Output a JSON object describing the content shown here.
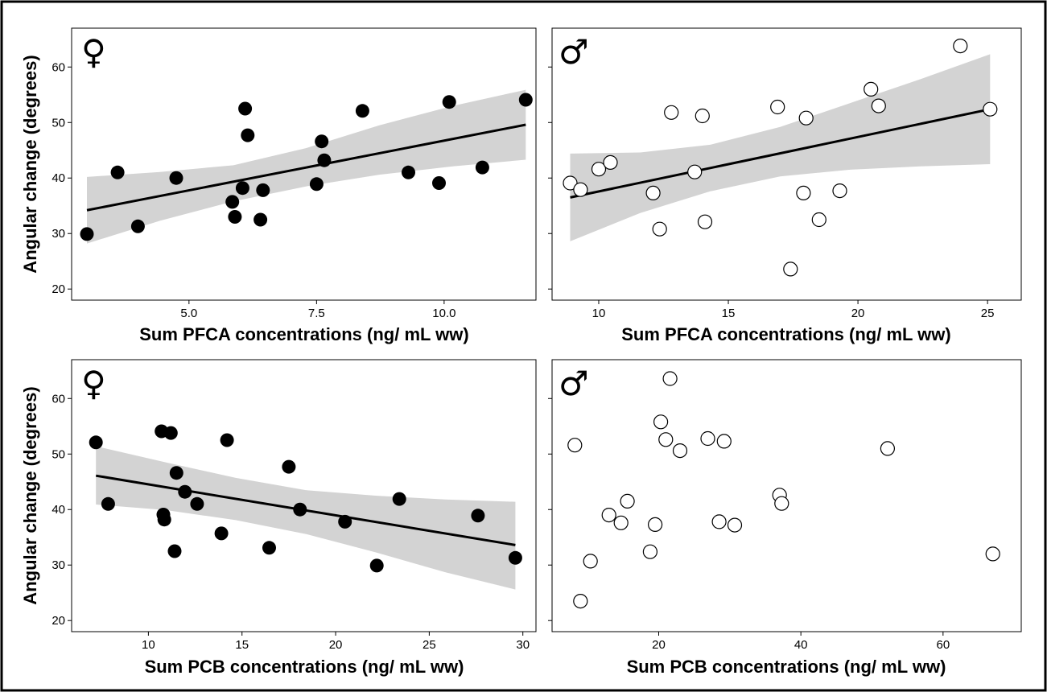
{
  "colors": {
    "female_point": "#000000",
    "male_point_fill": "#ffffff",
    "band": "#d3d3d3",
    "line": "#000000"
  },
  "chart_data": [
    {
      "type": "scatter",
      "symbol": "♀",
      "xlabel": "Sum PFCA concentrations (ng/ mL ww)",
      "ylabel": "Angular change (degrees)",
      "xlim": [
        2.7,
        11.8
      ],
      "ylim": [
        18,
        67
      ],
      "xticks": [
        5.0,
        7.5,
        10.0
      ],
      "xtick_labels": [
        "5.0",
        "7.5",
        "10.0"
      ],
      "yticks": [
        20,
        30,
        40,
        50,
        60
      ],
      "ytick_labels": [
        "20",
        "30",
        "40",
        "50",
        "60"
      ],
      "marker": "filled",
      "points": [
        [
          3.0,
          29.9
        ],
        [
          3.6,
          41.0
        ],
        [
          4.0,
          31.3
        ],
        [
          4.75,
          40.0
        ],
        [
          5.85,
          35.7
        ],
        [
          5.9,
          33.0
        ],
        [
          6.05,
          38.2
        ],
        [
          6.1,
          52.5
        ],
        [
          6.15,
          47.7
        ],
        [
          6.4,
          32.5
        ],
        [
          6.45,
          37.8
        ],
        [
          7.5,
          38.9
        ],
        [
          7.6,
          46.6
        ],
        [
          7.65,
          43.2
        ],
        [
          8.4,
          52.1
        ],
        [
          9.3,
          41.0
        ],
        [
          9.9,
          39.1
        ],
        [
          10.1,
          53.7
        ],
        [
          10.75,
          41.9
        ],
        [
          11.6,
          54.1
        ]
      ],
      "fit": {
        "x": [
          3.0,
          11.6
        ],
        "y": [
          34.2,
          49.6
        ]
      },
      "band": {
        "x": [
          3.0,
          4.43,
          5.87,
          7.3,
          8.73,
          10.17,
          11.6
        ],
        "lower": [
          28.2,
          32.3,
          35.8,
          38.5,
          40.6,
          42.1,
          43.3
        ],
        "upper": [
          40.2,
          41.1,
          42.3,
          45.4,
          49.5,
          53.0,
          55.9
        ]
      }
    },
    {
      "type": "scatter",
      "symbol": "♂",
      "xlabel": "Sum PFCA concentrations (ng/ mL ww)",
      "ylabel": "",
      "xlim": [
        8.2,
        26.3
      ],
      "ylim": [
        18,
        67
      ],
      "xticks": [
        10,
        15,
        20,
        25
      ],
      "xtick_labels": [
        "10",
        "15",
        "20",
        "25"
      ],
      "yticks": [
        20,
        30,
        40,
        50,
        60
      ],
      "ytick_labels": [
        "",
        "",
        "",
        "",
        ""
      ],
      "marker": "open",
      "points": [
        [
          8.9,
          39.1
        ],
        [
          9.3,
          37.9
        ],
        [
          10.0,
          41.6
        ],
        [
          10.45,
          42.8
        ],
        [
          12.1,
          37.3
        ],
        [
          12.35,
          30.8
        ],
        [
          12.8,
          51.8
        ],
        [
          13.7,
          41.1
        ],
        [
          14.0,
          51.2
        ],
        [
          14.1,
          32.1
        ],
        [
          16.9,
          52.8
        ],
        [
          17.4,
          23.6
        ],
        [
          17.9,
          37.3
        ],
        [
          18.0,
          50.8
        ],
        [
          18.5,
          32.5
        ],
        [
          19.3,
          37.7
        ],
        [
          20.5,
          56.0
        ],
        [
          20.8,
          53.0
        ],
        [
          23.95,
          63.8
        ],
        [
          25.1,
          52.4
        ]
      ],
      "fit": {
        "x": [
          8.9,
          25.1
        ],
        "y": [
          36.5,
          52.4
        ]
      },
      "band": {
        "x": [
          8.9,
          11.6,
          14.3,
          17.0,
          19.7,
          22.4,
          25.1
        ],
        "lower": [
          28.6,
          33.7,
          37.6,
          40.3,
          41.5,
          42.1,
          42.5
        ],
        "upper": [
          44.4,
          44.6,
          46.0,
          49.2,
          53.5,
          57.8,
          62.3
        ]
      }
    },
    {
      "type": "scatter",
      "symbol": "♀",
      "xlabel": "Sum PCB concentrations (ng/ mL ww)",
      "ylabel": "Angular change (degrees)",
      "xlim": [
        5.9,
        30.7
      ],
      "ylim": [
        18,
        67
      ],
      "xticks": [
        10,
        15,
        20,
        25,
        30
      ],
      "xtick_labels": [
        "10",
        "15",
        "20",
        "25",
        "30"
      ],
      "yticks": [
        20,
        30,
        40,
        50,
        60
      ],
      "ytick_labels": [
        "20",
        "30",
        "40",
        "50",
        "60"
      ],
      "marker": "filled",
      "points": [
        [
          7.2,
          52.1
        ],
        [
          7.85,
          41.0
        ],
        [
          10.7,
          54.1
        ],
        [
          10.8,
          39.1
        ],
        [
          10.85,
          38.2
        ],
        [
          11.2,
          53.8
        ],
        [
          11.4,
          32.5
        ],
        [
          11.5,
          46.6
        ],
        [
          11.95,
          43.2
        ],
        [
          12.6,
          41.0
        ],
        [
          13.9,
          35.7
        ],
        [
          14.2,
          52.5
        ],
        [
          16.45,
          33.1
        ],
        [
          17.5,
          47.7
        ],
        [
          18.1,
          40.0
        ],
        [
          20.5,
          37.8
        ],
        [
          22.2,
          29.9
        ],
        [
          23.4,
          41.9
        ],
        [
          27.6,
          38.9
        ],
        [
          29.6,
          31.3
        ]
      ],
      "fit": {
        "x": [
          7.2,
          29.6
        ],
        "y": [
          46.1,
          33.6
        ]
      },
      "band": {
        "x": [
          7.2,
          10.93,
          14.67,
          18.4,
          22.13,
          25.87,
          29.6
        ],
        "lower": [
          40.9,
          39.9,
          38.1,
          35.6,
          32.3,
          28.7,
          25.6
        ],
        "upper": [
          51.4,
          48.5,
          45.7,
          43.5,
          42.5,
          41.8,
          41.4
        ]
      }
    },
    {
      "type": "scatter",
      "symbol": "♂",
      "xlabel": "Sum PCB concentrations (ng/ mL ww)",
      "ylabel": "",
      "xlim": [
        5.0,
        71.0
      ],
      "ylim": [
        18,
        67
      ],
      "xticks": [
        20,
        40,
        60
      ],
      "xtick_labels": [
        "20",
        "40",
        "60"
      ],
      "yticks": [
        20,
        30,
        40,
        50,
        60
      ],
      "ytick_labels": [
        "",
        "",
        "",
        "",
        ""
      ],
      "marker": "open",
      "points": [
        [
          8.2,
          51.6
        ],
        [
          9.0,
          23.5
        ],
        [
          10.4,
          30.7
        ],
        [
          13.0,
          39.0
        ],
        [
          14.7,
          37.6
        ],
        [
          15.6,
          41.5
        ],
        [
          18.8,
          32.4
        ],
        [
          19.5,
          37.3
        ],
        [
          20.3,
          55.8
        ],
        [
          21.0,
          52.6
        ],
        [
          21.6,
          63.6
        ],
        [
          23.0,
          50.6
        ],
        [
          26.9,
          52.8
        ],
        [
          28.5,
          37.8
        ],
        [
          29.2,
          52.3
        ],
        [
          30.7,
          37.2
        ],
        [
          37.0,
          42.6
        ],
        [
          37.3,
          41.1
        ],
        [
          52.2,
          51.0
        ],
        [
          67.0,
          32.0
        ]
      ]
    }
  ]
}
